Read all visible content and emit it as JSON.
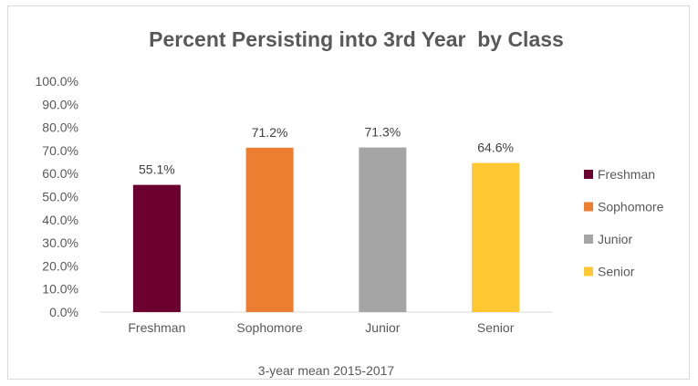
{
  "chart_data": {
    "type": "bar",
    "title": "Percent Persisting into 3rd Year  by Class",
    "xlabel": "3-year mean 2015-2017",
    "ylabel": "",
    "ylim": [
      0,
      100
    ],
    "yticks": [
      "0.0%",
      "10.0%",
      "20.0%",
      "30.0%",
      "40.0%",
      "50.0%",
      "60.0%",
      "70.0%",
      "80.0%",
      "90.0%",
      "100.0%"
    ],
    "categories": [
      "Freshman",
      "Sophomore",
      "Junior",
      "Senior"
    ],
    "values": [
      55.1,
      71.2,
      71.3,
      64.6
    ],
    "data_labels": [
      "55.1%",
      "71.2%",
      "71.3%",
      "64.6%"
    ],
    "colors": [
      "#6b0030",
      "#ed7d31",
      "#a5a5a5",
      "#ffc732"
    ],
    "legend": {
      "position": "right",
      "entries": [
        "Freshman",
        "Sophomore",
        "Junior",
        "Senior"
      ]
    },
    "grid": false
  }
}
